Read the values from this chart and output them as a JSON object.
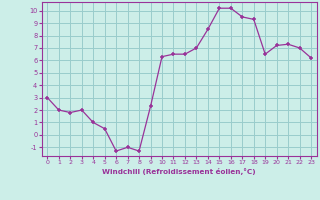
{
  "x": [
    0,
    1,
    2,
    3,
    4,
    5,
    6,
    7,
    8,
    9,
    10,
    11,
    12,
    13,
    14,
    15,
    16,
    17,
    18,
    19,
    20,
    21,
    22,
    23
  ],
  "y": [
    3,
    2,
    1.8,
    2,
    1,
    0.5,
    -1.3,
    -1,
    -1.3,
    2.3,
    6.3,
    6.5,
    6.5,
    7,
    8.5,
    10.2,
    10.2,
    9.5,
    9.3,
    6.5,
    7.2,
    7.3,
    7,
    6.2
  ],
  "line_color": "#993399",
  "marker": "+",
  "bg_color": "#cceee8",
  "grid_color": "#99cccc",
  "tick_label_color": "#993399",
  "axis_color": "#993399",
  "xlabel": "Windchill (Refroidissement éolien,°C)",
  "ylabel_ticks": [
    -1,
    0,
    1,
    2,
    3,
    4,
    5,
    6,
    7,
    8,
    9,
    10
  ],
  "xticks": [
    0,
    1,
    2,
    3,
    4,
    5,
    6,
    7,
    8,
    9,
    10,
    11,
    12,
    13,
    14,
    15,
    16,
    17,
    18,
    19,
    20,
    21,
    22,
    23
  ],
  "ylim": [
    -1.7,
    10.7
  ],
  "xlim": [
    -0.5,
    23.5
  ]
}
